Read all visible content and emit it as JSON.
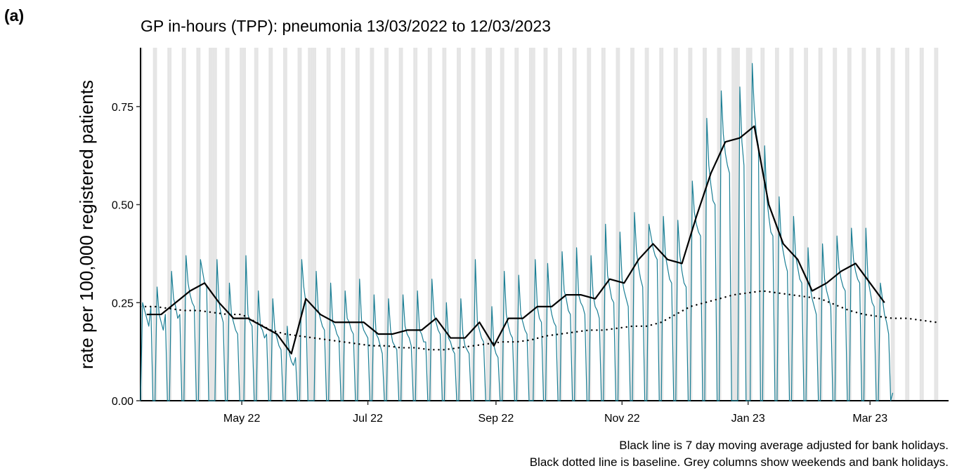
{
  "chart_data": {
    "type": "line",
    "panel_label": "(a)",
    "title": "GP in-hours (TPP): pneumonia 13/03/2022 to 12/03/2023",
    "y_label": "rate per 100,000 registered patients",
    "notes": [
      "Black line is 7 day moving average adjusted for bank holidays.",
      "Black dotted line is baseline. Grey columns show weekends and bank holidays."
    ],
    "xlim": [
      0,
      391
    ],
    "xticks": [
      {
        "value": 49,
        "label": "May 22"
      },
      {
        "value": 110,
        "label": "Jul 22"
      },
      {
        "value": 172,
        "label": "Sep 22"
      },
      {
        "value": 233,
        "label": "Nov 22"
      },
      {
        "value": 294,
        "label": "Jan 23"
      },
      {
        "value": 353,
        "label": "Mar 23"
      }
    ],
    "ylim": [
      0,
      0.9
    ],
    "yticks": [
      {
        "value": 0,
        "label": "0.00"
      },
      0.25,
      {
        "value": 0.5,
        "label": "0.50"
      },
      0.75
    ],
    "weekend_days": [
      0,
      6
    ],
    "bank_holidays": [
      33,
      36,
      50,
      81,
      82,
      169,
      190,
      288,
      289,
      295
    ],
    "shade_color": "#e5e5e5",
    "series": [
      {
        "color": "#1b7f95",
        "width": 1.2,
        "line_style": "solid",
        "values": [
          0,
          0.25,
          0.23,
          0.21,
          0.19,
          0.24,
          0,
          0,
          0.29,
          0.22,
          0.2,
          0.18,
          0.22,
          0,
          0,
          0.33,
          0.26,
          0.24,
          0.21,
          0.22,
          0,
          0,
          0.37,
          0.3,
          0.27,
          0.25,
          0.24,
          0,
          0,
          0.36,
          0.33,
          0.3,
          0.29,
          0,
          0,
          0,
          0,
          0.36,
          0.25,
          0.22,
          0.2,
          0,
          0,
          0.3,
          0.22,
          0.2,
          0.18,
          0.17,
          0,
          0,
          0,
          0.37,
          0.22,
          0.2,
          0.19,
          0,
          0,
          0.28,
          0.19,
          0.18,
          0.16,
          0.17,
          0,
          0,
          0.26,
          0.18,
          0.16,
          0.14,
          0.13,
          0,
          0,
          0.19,
          0.12,
          0.1,
          0.09,
          0.11,
          0,
          0,
          0.36,
          0.29,
          0.25,
          0,
          0,
          0,
          0,
          0.33,
          0.23,
          0.21,
          0.19,
          0.18,
          0,
          0,
          0.3,
          0.2,
          0.19,
          0.17,
          0.16,
          0,
          0,
          0.28,
          0.21,
          0.2,
          0.18,
          0.17,
          0,
          0,
          0.31,
          0.2,
          0.18,
          0.17,
          0.16,
          0,
          0,
          0.27,
          0.17,
          0.16,
          0.14,
          0.12,
          0,
          0,
          0.26,
          0.18,
          0.15,
          0.14,
          0.13,
          0,
          0,
          0.27,
          0.19,
          0.17,
          0.16,
          0.14,
          0,
          0,
          0.28,
          0.18,
          0.17,
          0.15,
          0.15,
          0,
          0,
          0.31,
          0.22,
          0.2,
          0.18,
          0.17,
          0,
          0,
          0.25,
          0.16,
          0.15,
          0.13,
          0.12,
          0,
          0,
          0.26,
          0.17,
          0.14,
          0.13,
          0.12,
          0,
          0,
          0.36,
          0.2,
          0.18,
          0.16,
          0.15,
          0,
          0,
          0,
          0.24,
          0.14,
          0.12,
          0.11,
          0,
          0,
          0.33,
          0.22,
          0.19,
          0.17,
          0.16,
          0,
          0,
          0.32,
          0.22,
          0.2,
          0.18,
          0.17,
          0,
          0,
          0,
          0.36,
          0.24,
          0.21,
          0.2,
          0,
          0,
          0.35,
          0.25,
          0.22,
          0.2,
          0.19,
          0,
          0,
          0.38,
          0.28,
          0.26,
          0.23,
          0.22,
          0,
          0,
          0.39,
          0.27,
          0.25,
          0.24,
          0.22,
          0,
          0,
          0.37,
          0.27,
          0.24,
          0.23,
          0.21,
          0,
          0,
          0.45,
          0.32,
          0.29,
          0.26,
          0.25,
          0,
          0,
          0.43,
          0.31,
          0.28,
          0.26,
          0.24,
          0,
          0,
          0.48,
          0.38,
          0.34,
          0.31,
          0.29,
          0,
          0,
          0.45,
          0.42,
          0.39,
          0.37,
          0.36,
          0,
          0,
          0.47,
          0.37,
          0.34,
          0.31,
          0.3,
          0,
          0,
          0.46,
          0.37,
          0.33,
          0.3,
          0.29,
          0,
          0,
          0.56,
          0.48,
          0.45,
          0.43,
          0.42,
          0,
          0,
          0.72,
          0.6,
          0.55,
          0.51,
          0.5,
          0,
          0,
          0.79,
          0.68,
          0.63,
          0.6,
          0.58,
          0,
          0,
          0,
          0,
          0.8,
          0.66,
          0.6,
          0,
          0,
          0,
          0.86,
          0.74,
          0.68,
          0.65,
          0,
          0,
          0.65,
          0.52,
          0.47,
          0.43,
          0.42,
          0,
          0,
          0.52,
          0.41,
          0.38,
          0.35,
          0.33,
          0,
          0,
          0.47,
          0.37,
          0.34,
          0.31,
          0.3,
          0,
          0,
          0.39,
          0.29,
          0.26,
          0.24,
          0.22,
          0,
          0,
          0.4,
          0.31,
          0.28,
          0.26,
          0.24,
          0,
          0,
          0.42,
          0.34,
          0.31,
          0.29,
          0.28,
          0,
          0,
          0.44,
          0.36,
          0.33,
          0.31,
          0.3,
          0,
          0,
          0.44,
          0.31,
          0.28,
          0.25,
          0.24,
          0,
          0,
          0.3,
          0.26,
          0.22,
          0.2,
          0.17,
          0,
          0.02
        ]
      },
      {
        "color": "#000000",
        "width": 2.2,
        "line_style": "solid",
        "x": [
          3,
          10,
          17,
          24,
          31,
          38,
          45,
          52,
          59,
          66,
          73,
          80,
          87,
          94,
          101,
          108,
          115,
          122,
          129,
          136,
          143,
          150,
          157,
          164,
          171,
          178,
          185,
          192,
          199,
          206,
          213,
          220,
          227,
          234,
          241,
          248,
          255,
          262,
          269,
          276,
          283,
          290,
          297,
          304,
          311,
          318,
          325,
          332,
          339,
          346,
          353,
          360
        ],
        "values": [
          0.22,
          0.22,
          0.25,
          0.28,
          0.3,
          0.25,
          0.21,
          0.21,
          0.19,
          0.17,
          0.12,
          0.26,
          0.22,
          0.2,
          0.2,
          0.2,
          0.17,
          0.17,
          0.18,
          0.18,
          0.21,
          0.16,
          0.16,
          0.2,
          0.14,
          0.21,
          0.21,
          0.24,
          0.24,
          0.27,
          0.27,
          0.26,
          0.31,
          0.3,
          0.36,
          0.4,
          0.36,
          0.35,
          0.47,
          0.58,
          0.66,
          0.67,
          0.7,
          0.5,
          0.4,
          0.36,
          0.28,
          0.3,
          0.33,
          0.35,
          0.3,
          0.25
        ]
      },
      {
        "color": "#000000",
        "width": 2.4,
        "line_style": "dotted",
        "x": [
          0,
          7,
          14,
          21,
          28,
          35,
          42,
          49,
          56,
          63,
          70,
          77,
          84,
          91,
          98,
          105,
          112,
          119,
          126,
          133,
          140,
          147,
          154,
          161,
          168,
          175,
          182,
          189,
          196,
          203,
          210,
          217,
          224,
          231,
          238,
          245,
          252,
          259,
          266,
          273,
          280,
          287,
          294,
          301,
          308,
          315,
          322,
          329,
          336,
          343,
          350,
          357,
          364,
          371,
          378,
          385
        ],
        "values": [
          0.24,
          0.24,
          0.235,
          0.23,
          0.23,
          0.225,
          0.22,
          0.22,
          0.2,
          0.18,
          0.17,
          0.165,
          0.16,
          0.155,
          0.15,
          0.145,
          0.14,
          0.14,
          0.135,
          0.135,
          0.13,
          0.13,
          0.135,
          0.14,
          0.145,
          0.15,
          0.15,
          0.155,
          0.165,
          0.17,
          0.175,
          0.18,
          0.18,
          0.185,
          0.19,
          0.19,
          0.2,
          0.22,
          0.24,
          0.25,
          0.26,
          0.27,
          0.275,
          0.28,
          0.275,
          0.27,
          0.265,
          0.26,
          0.245,
          0.23,
          0.22,
          0.215,
          0.21,
          0.21,
          0.205,
          0.2
        ]
      }
    ]
  }
}
